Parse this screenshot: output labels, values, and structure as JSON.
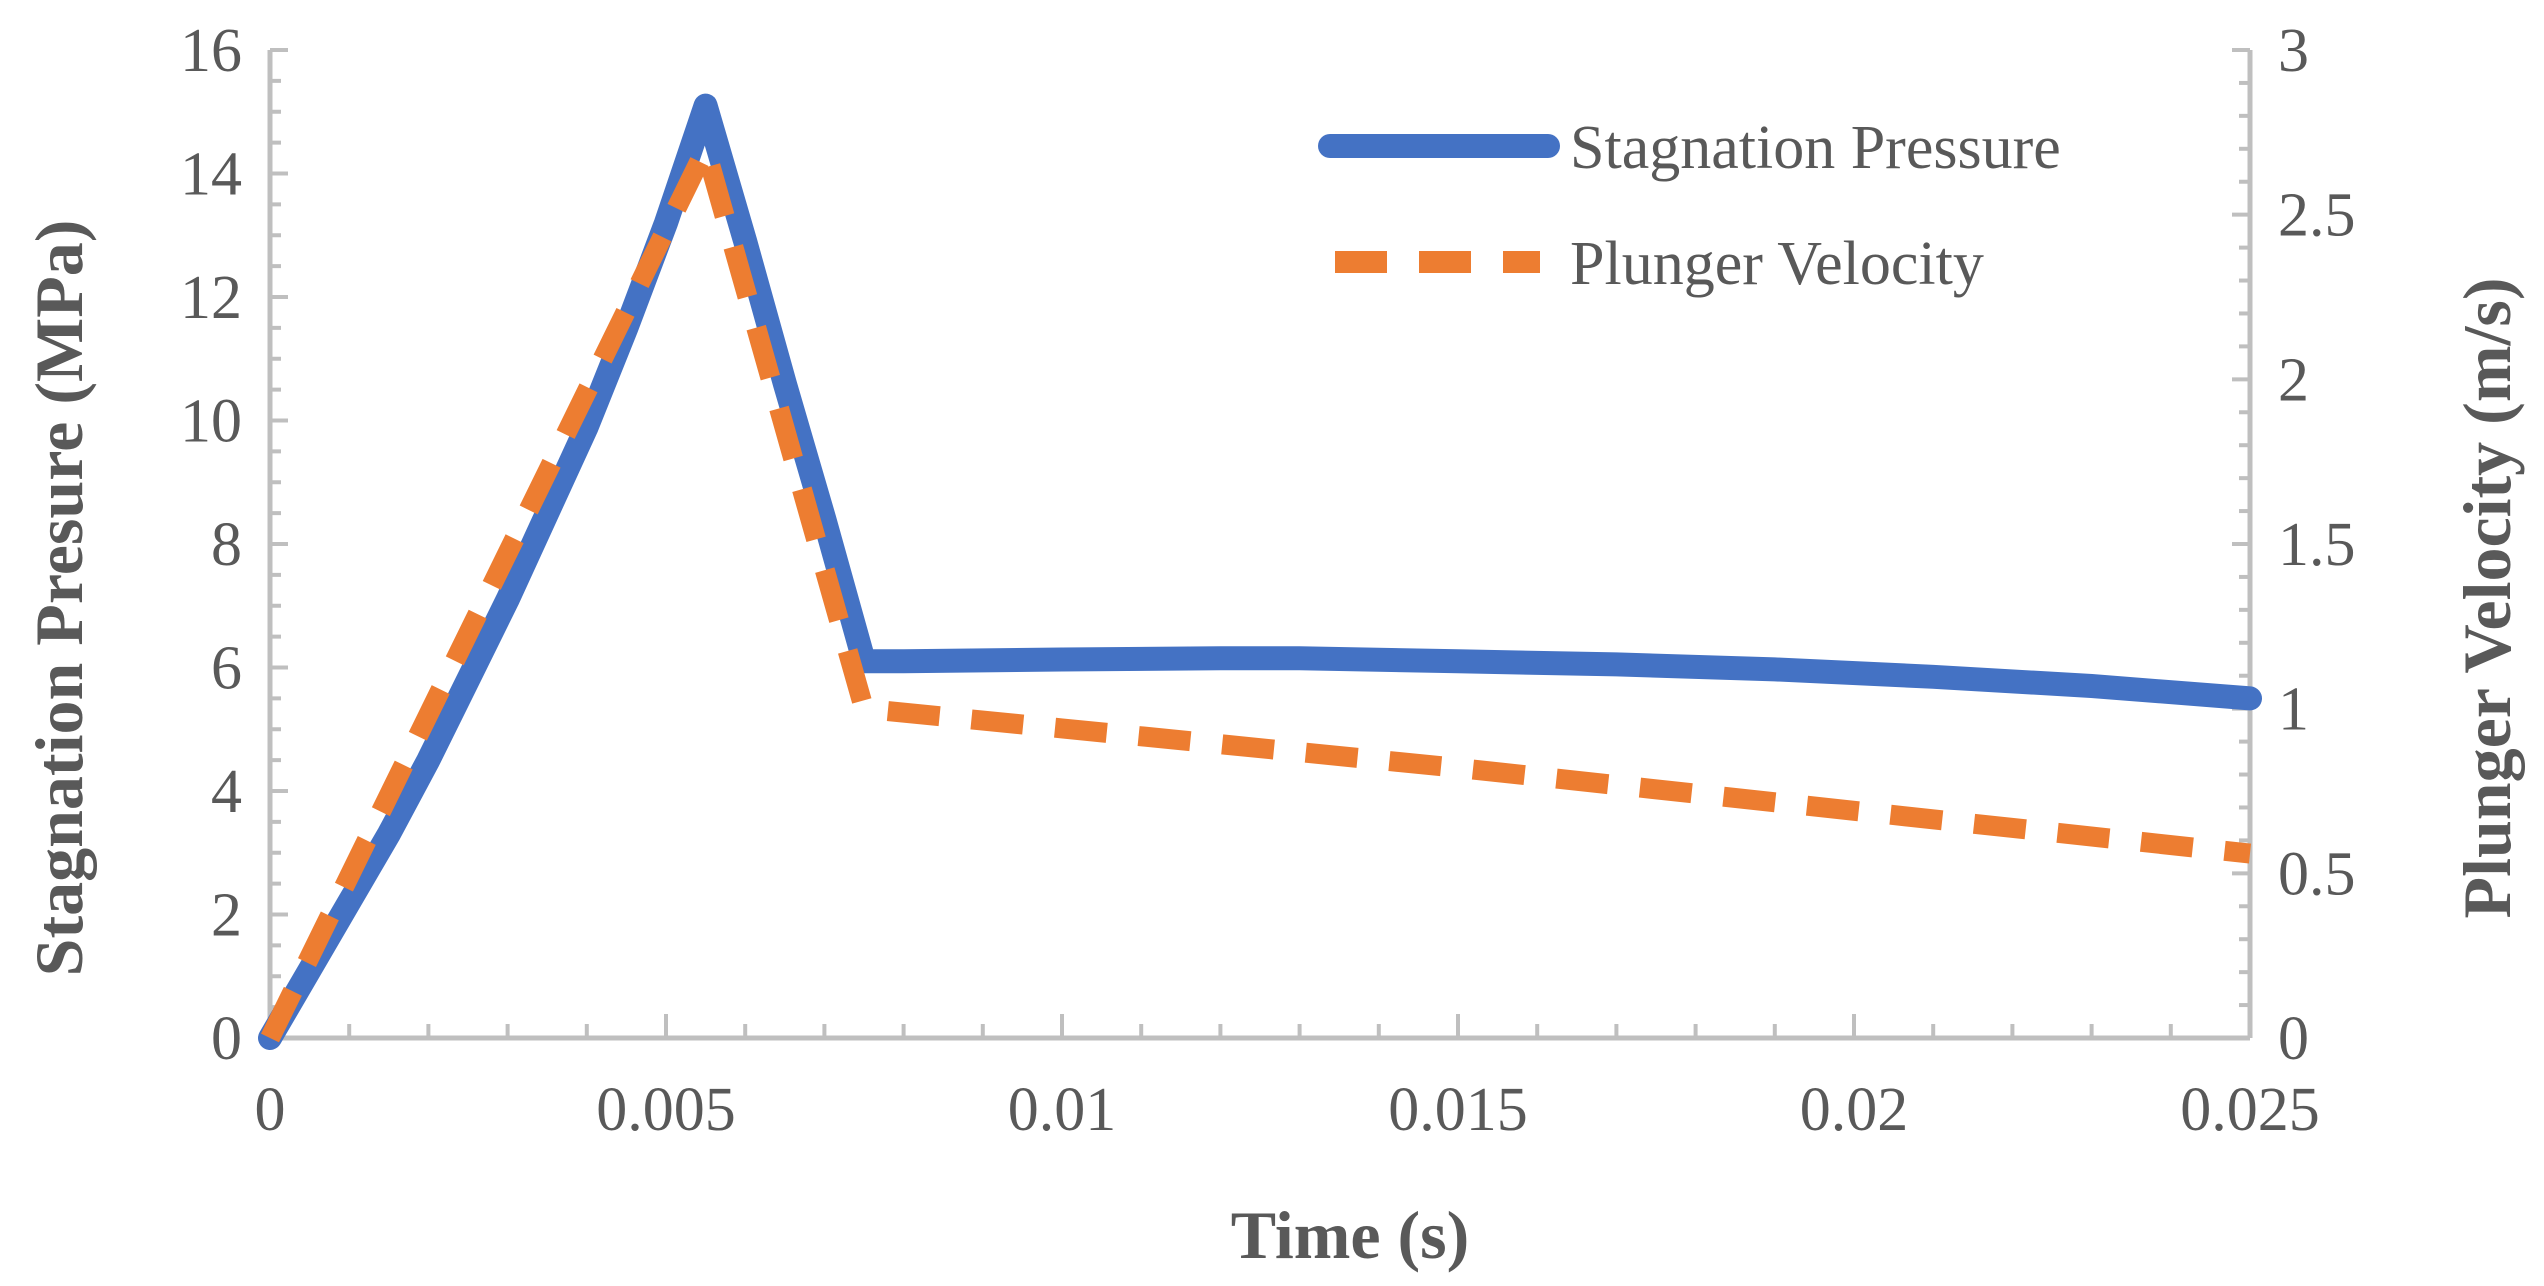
{
  "chart_data": {
    "type": "line",
    "title": "",
    "xlabel": "Time (s)",
    "ylabel_left": "Stagnation Presure (MPa)",
    "ylabel_right": "Plunger Velocity (m/s)",
    "xlim": [
      0,
      0.025
    ],
    "ylim_left": [
      0,
      16
    ],
    "ylim_right": [
      0,
      3
    ],
    "x_ticks": [
      "0",
      "0.005",
      "0.01",
      "0.015",
      "0.02",
      "0.025"
    ],
    "y_left_ticks": [
      "0",
      "2",
      "4",
      "6",
      "8",
      "10",
      "12",
      "14",
      "16"
    ],
    "y_right_ticks": [
      "0",
      "0.5",
      "1",
      "1.5",
      "2",
      "2.5",
      "3"
    ],
    "grid": false,
    "legend_position": "top-right",
    "colors": {
      "pressure": "#4472C4",
      "velocity": "#ED7D31",
      "axis": "#BFBFBF",
      "text": "#595959"
    },
    "series": [
      {
        "name": "Stagnation Pressure",
        "axis": "left",
        "style": "solid",
        "x": [
          0,
          0.0005,
          0.001,
          0.0015,
          0.002,
          0.0025,
          0.003,
          0.0035,
          0.004,
          0.0045,
          0.005,
          0.0055,
          0.006,
          0.0065,
          0.007,
          0.0075,
          0.008,
          0.01,
          0.012,
          0.013,
          0.015,
          0.017,
          0.019,
          0.021,
          0.023,
          0.025
        ],
        "values": [
          0,
          1.1,
          2.2,
          3.3,
          4.5,
          5.8,
          7.1,
          8.5,
          9.9,
          11.5,
          13.2,
          15.1,
          12.9,
          10.6,
          8.4,
          6.1,
          6.1,
          6.13,
          6.15,
          6.15,
          6.1,
          6.05,
          5.97,
          5.85,
          5.7,
          5.5
        ]
      },
      {
        "name": "Plunger Velocity",
        "axis": "right",
        "style": "dashed",
        "x": [
          0,
          0.0055,
          0.0075,
          0.01,
          0.015,
          0.02,
          0.025
        ],
        "values": [
          0,
          2.7,
          1.0,
          0.94,
          0.82,
          0.69,
          0.56
        ]
      }
    ]
  }
}
